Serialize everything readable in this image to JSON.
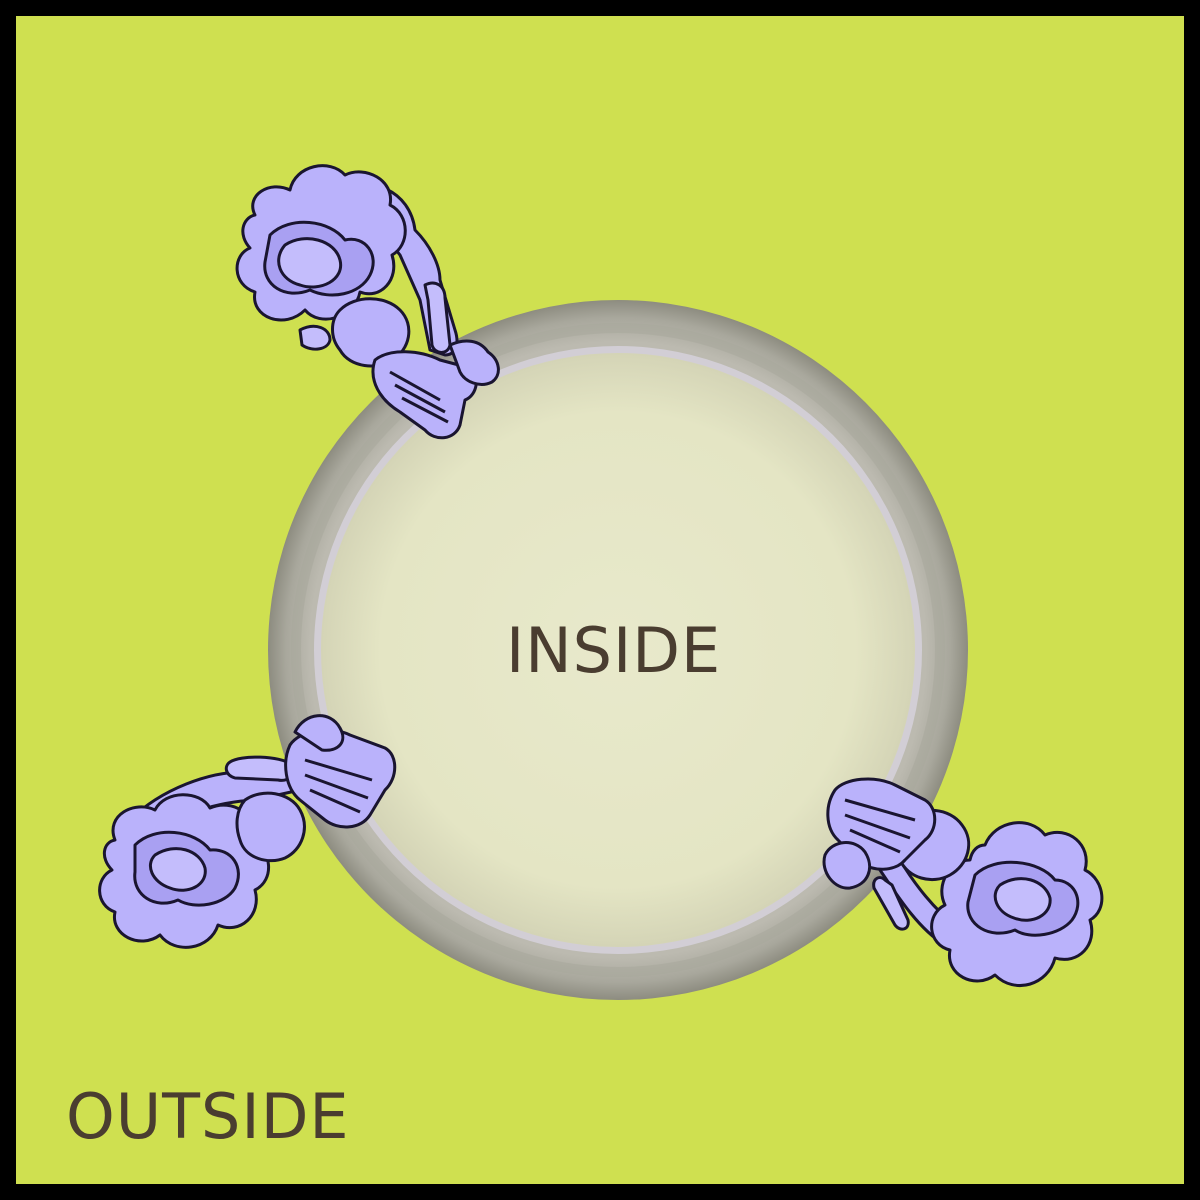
{
  "labels": {
    "inside": "INSIDE",
    "outside": "OUTSIDE"
  },
  "colors": {
    "frame": "#000000",
    "outside_bg": "#cfe050",
    "membrane_outer": "#9c9b8f",
    "membrane_inner": "#cfcbd0",
    "inside_fill": "#e6e7c8",
    "protein_fill": "#bab2fb",
    "protein_stroke": "#1a1530",
    "text": "#4a3d30"
  },
  "elements": {
    "proteins": [
      "membrane-protein-top-left",
      "membrane-protein-bottom-left",
      "membrane-protein-bottom-right"
    ]
  }
}
